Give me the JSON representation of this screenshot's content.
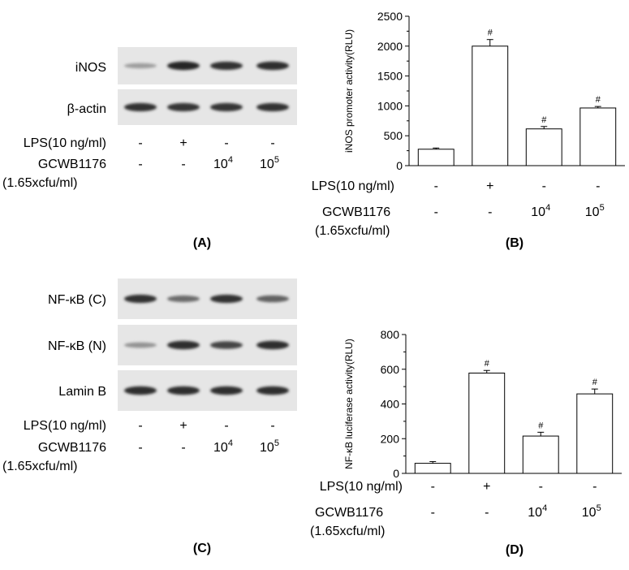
{
  "panels": {
    "A": {
      "label": "(A)",
      "rows": [
        "iNOS",
        "β-actin"
      ],
      "lps_label": "LPS(10 ng/ml)",
      "lps_values": [
        "-",
        "+",
        "-",
        "-"
      ],
      "gcwb_label": "GCWB1176",
      "gcwb_unit": "(1.65xcfu/ml)",
      "gcwb_values": [
        "-",
        "-",
        "10",
        "10"
      ],
      "gcwb_exponents": [
        "",
        "",
        "4",
        "5"
      ]
    },
    "C": {
      "label": "(C)",
      "rows": [
        "NF-κB (C)",
        "NF-κB (N)",
        "Lamin B"
      ],
      "lps_label": "LPS(10 ng/ml)",
      "lps_values": [
        "-",
        "+",
        "-",
        "-"
      ],
      "gcwb_label": "GCWB1176",
      "gcwb_unit": "(1.65xcfu/ml)",
      "gcwb_values": [
        "-",
        "-",
        "10",
        "10"
      ],
      "gcwb_exponents": [
        "",
        "",
        "4",
        "5"
      ]
    },
    "B": {
      "label": "(B)",
      "lps_label": "LPS(10 ng/ml)",
      "gcwb_label": "GCWB1176",
      "gcwb_unit": "(1.65xcfu/ml)"
    },
    "D": {
      "label": "(D)",
      "lps_label": "LPS(10 ng/ml)",
      "gcwb_label": "GCWB1176",
      "gcwb_unit": "(1.65xcfu/ml)"
    }
  },
  "blots": {
    "A": [
      {
        "intensity": [
          0.35,
          0.95,
          0.9,
          0.92
        ]
      },
      {
        "intensity": [
          0.9,
          0.88,
          0.88,
          0.9
        ]
      }
    ],
    "C": [
      {
        "intensity": [
          0.9,
          0.6,
          0.9,
          0.65
        ]
      },
      {
        "intensity": [
          0.4,
          0.92,
          0.8,
          0.92
        ]
      },
      {
        "intensity": [
          0.92,
          0.92,
          0.92,
          0.92
        ]
      }
    ]
  },
  "chart_data": [
    {
      "panel": "B",
      "type": "bar",
      "ylabel": "iNOS promoter activity(RLU)",
      "ylim": [
        0,
        2500
      ],
      "yticks": [
        0,
        500,
        1000,
        1500,
        2000,
        2500
      ],
      "lps": [
        "-",
        "+",
        "-",
        "-"
      ],
      "gcwb": [
        "-",
        "-",
        "10",
        "10"
      ],
      "gcwb_exp": [
        "",
        "",
        "4",
        "5"
      ],
      "values": [
        275,
        2000,
        615,
        965
      ],
      "errors": [
        20,
        110,
        40,
        25
      ],
      "annotations": [
        "",
        "#",
        "#",
        "#"
      ]
    },
    {
      "panel": "D",
      "type": "bar",
      "ylabel": "NF-κB luciferase activity(RLU)",
      "ylim": [
        0,
        800
      ],
      "yticks": [
        0,
        200,
        400,
        600,
        800
      ],
      "lps": [
        "-",
        "+",
        "-",
        "-"
      ],
      "gcwb": [
        "-",
        "-",
        "10",
        "10"
      ],
      "gcwb_exp": [
        "",
        "",
        "4",
        "5"
      ],
      "values": [
        58,
        578,
        215,
        458
      ],
      "errors": [
        10,
        15,
        22,
        28
      ],
      "annotations": [
        "",
        "#",
        "#",
        "#"
      ]
    }
  ]
}
